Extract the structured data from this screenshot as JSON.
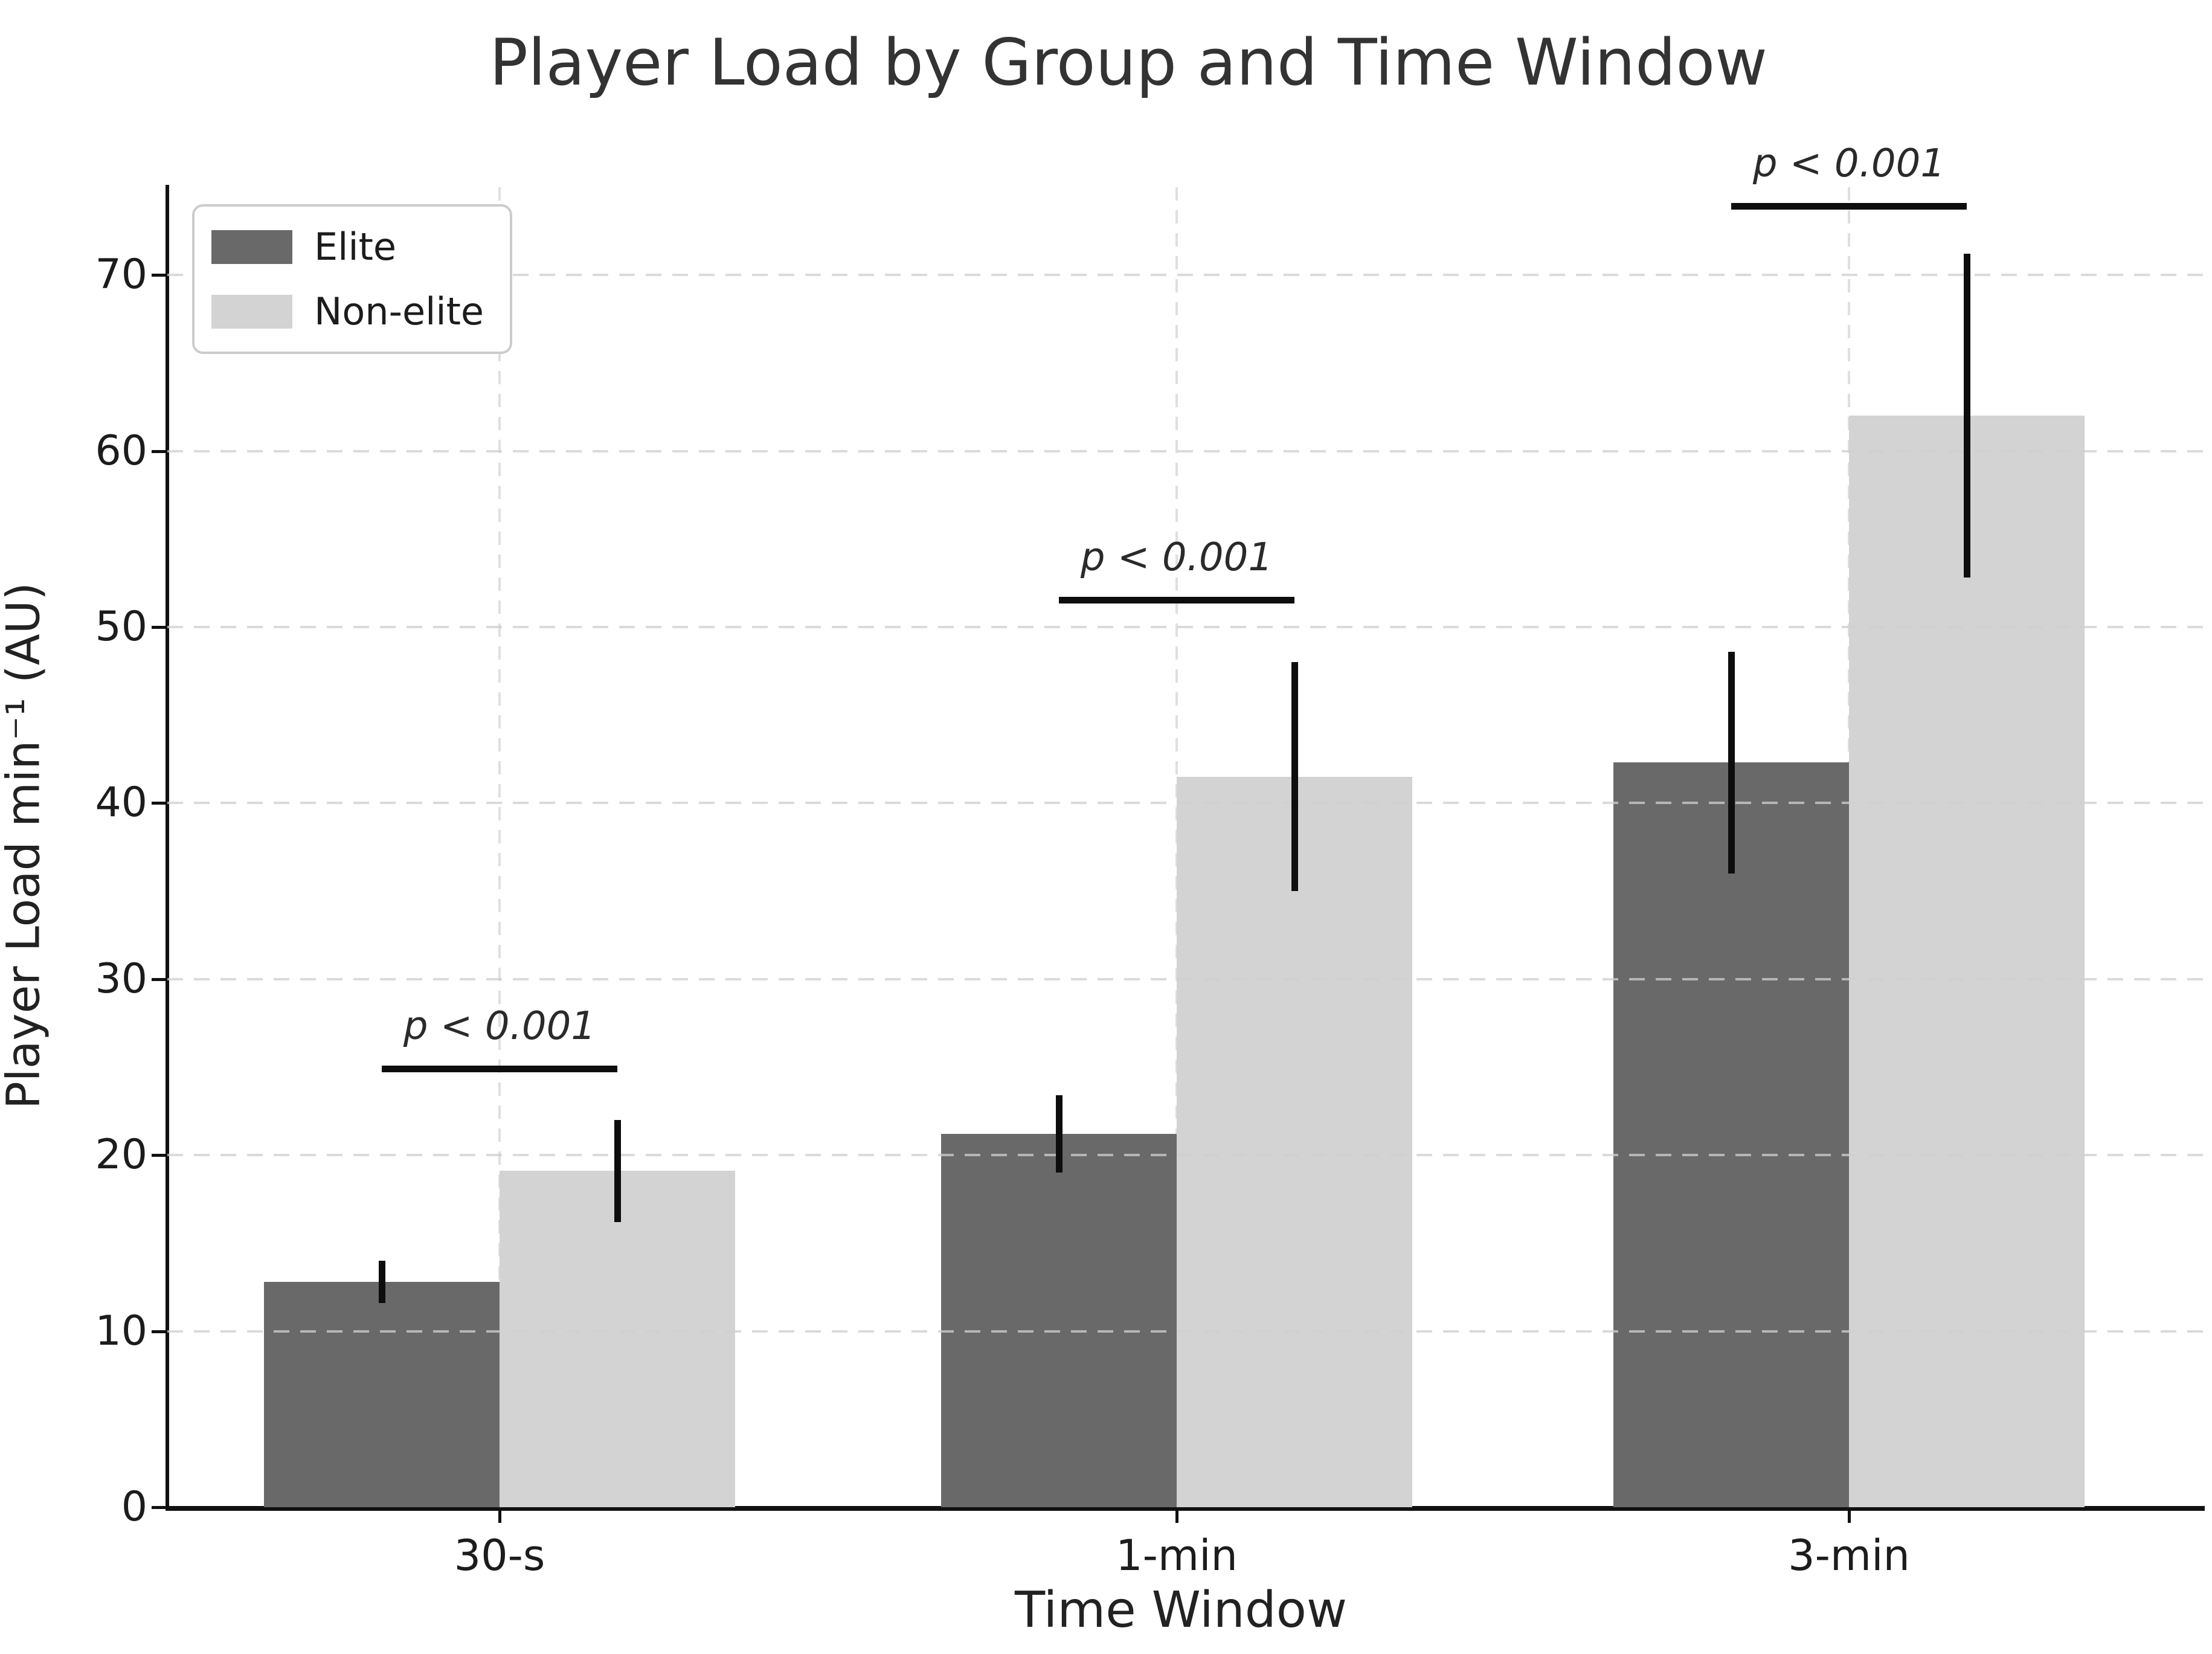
{
  "chart_data": {
    "type": "bar",
    "title": "Player Load by Group and Time Window",
    "xlabel": "Time Window",
    "ylabel": "Player Load min⁻¹ (AU)",
    "categories": [
      "30-s",
      "1-min",
      "3-min"
    ],
    "series": [
      {
        "name": "Elite",
        "color": "#696969",
        "values": [
          12.8,
          21.2,
          42.3
        ],
        "errors": [
          1.2,
          2.2,
          6.3
        ]
      },
      {
        "name": "Non-elite",
        "color": "#d3d3d3",
        "values": [
          19.1,
          41.5,
          62.0
        ],
        "errors": [
          2.9,
          6.5,
          9.2
        ]
      }
    ],
    "ylim": [
      0,
      75
    ],
    "yticks": [
      0,
      10,
      20,
      30,
      40,
      50,
      60,
      70
    ],
    "grid": true,
    "legend_position": "upper left",
    "annotations": [
      {
        "label": "p < 0.001",
        "category": "30-s",
        "y": 25.1
      },
      {
        "label": "p < 0.001",
        "category": "1-min",
        "y": 51.7
      },
      {
        "label": "p < 0.001",
        "category": "3-min",
        "y": 74.1
      }
    ],
    "colors": {
      "error_bar": "#0d0d0d",
      "gridline": "#cfcfcf",
      "axis": "#111111",
      "text": "#222222",
      "title": "#333333"
    }
  }
}
